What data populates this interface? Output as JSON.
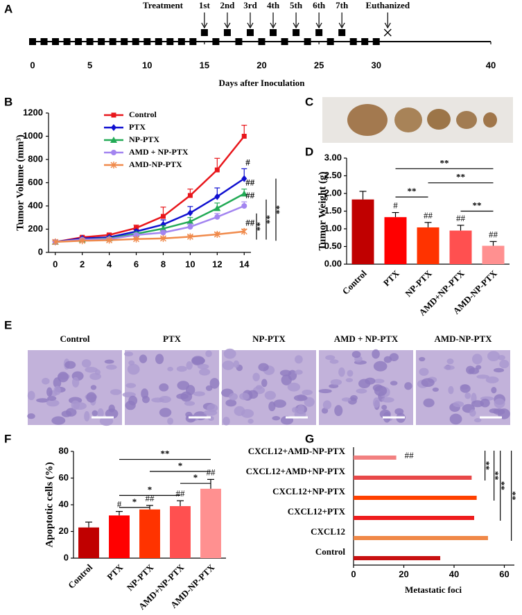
{
  "chart_data": [
    {
      "type": "timeline",
      "panel": "A",
      "title": "Treatment",
      "xlabel": "Days after Inoculation",
      "xlim": [
        0,
        40
      ],
      "xticks": [
        0,
        5,
        10,
        15,
        20,
        25,
        30,
        40
      ],
      "days": [
        0,
        1,
        2,
        3,
        4,
        5,
        6,
        7,
        8,
        9,
        10,
        11,
        12,
        13,
        14,
        15,
        16,
        17,
        18,
        19,
        20,
        21,
        22,
        23,
        24,
        25,
        26,
        27,
        28,
        29,
        30
      ],
      "doses": {
        "labels": [
          "1st",
          "2nd",
          "3rd",
          "4th",
          "5th",
          "6th",
          "7th"
        ],
        "days": [
          15,
          17,
          19,
          21,
          23,
          25,
          27
        ]
      },
      "endpoint": {
        "label": "Euthanized",
        "day": 31
      }
    },
    {
      "type": "line",
      "panel": "B",
      "ylabel": "Tumor Volume (mm³)",
      "legend": "upper left",
      "x": [
        0,
        2,
        4,
        6,
        8,
        10,
        12,
        14
      ],
      "xlim": [
        -0.5,
        14.5
      ],
      "xticks": [
        0,
        2,
        4,
        6,
        8,
        10,
        12,
        14
      ],
      "ylim": [
        0,
        1200
      ],
      "yticks": [
        0,
        200,
        400,
        600,
        800,
        1000,
        1200
      ],
      "series": [
        {
          "name": "Control",
          "color": "#e8161b",
          "marker": "square",
          "values": [
            90,
            130,
            150,
            210,
            310,
            490,
            710,
            1000
          ],
          "errors": [
            10,
            10,
            12,
            25,
            80,
            55,
            100,
            95
          ]
        },
        {
          "name": "PTX",
          "color": "#1010d0",
          "marker": "diamond",
          "values": [
            90,
            120,
            130,
            180,
            240,
            340,
            480,
            635
          ],
          "errors": [
            10,
            8,
            10,
            15,
            40,
            55,
            75,
            85
          ],
          "end_label": "#"
        },
        {
          "name": "NP-PTX",
          "color": "#22aa55",
          "marker": "triangle",
          "values": [
            90,
            110,
            120,
            160,
            205,
            265,
            380,
            505
          ],
          "errors": [
            8,
            8,
            10,
            15,
            25,
            35,
            45,
            40
          ],
          "end_label": "##"
        },
        {
          "name": "AMD + NP-PTX",
          "color": "#a385f0",
          "marker": "circle",
          "values": [
            90,
            110,
            115,
            150,
            170,
            220,
            305,
            400
          ],
          "errors": [
            8,
            8,
            8,
            12,
            20,
            25,
            30,
            35
          ],
          "end_label": "##"
        },
        {
          "name": "AMD-NP-PTX",
          "color": "#f08a4b",
          "marker": "asterisk",
          "values": [
            90,
            100,
            105,
            115,
            120,
            135,
            155,
            180
          ],
          "errors": [
            8,
            5,
            6,
            8,
            10,
            12,
            15,
            20
          ],
          "end_label": "##"
        }
      ],
      "brackets": [
        {
          "label": "**",
          "span": [
            110,
            335
          ]
        },
        {
          "label": "**",
          "span": [
            110,
            455
          ]
        },
        {
          "label": "**",
          "span": [
            100,
            635
          ]
        }
      ]
    },
    {
      "type": "bar",
      "panel": "D",
      "ylabel": "Tumor Weight (g)",
      "categories": [
        "Control",
        "PTX",
        "NP-PTX",
        "AMD+NP-PTX",
        "AMD-NP-PTX"
      ],
      "values": [
        1.83,
        1.33,
        1.04,
        0.95,
        0.52
      ],
      "errors": [
        0.23,
        0.13,
        0.14,
        0.15,
        0.12
      ],
      "colors": [
        "#c00000",
        "#ff0000",
        "#ff3300",
        "#ff5050",
        "#ff9090"
      ],
      "markers": [
        null,
        "#",
        "##",
        "##",
        "##"
      ],
      "ylim": [
        0,
        3
      ],
      "yticks": [
        {
          "value": 0,
          "label": "0.00"
        },
        {
          "value": 0.5,
          "label": "0.50"
        },
        {
          "value": 1,
          "label": "1.00"
        },
        {
          "value": 1.5,
          "label": "1.50"
        },
        {
          "value": 2,
          "label": "2.00"
        },
        {
          "value": 2.5,
          "label": "2.50"
        },
        {
          "value": 3,
          "label": "3.00"
        }
      ],
      "brackets": [
        {
          "label": "**",
          "from": "PTX",
          "to": "AMD-NP-PTX",
          "y": 2.7
        },
        {
          "label": "**",
          "from": "NP-PTX",
          "to": "AMD-NP-PTX",
          "y": 2.3
        },
        {
          "label": "**",
          "from": "PTX",
          "to": "NP-PTX",
          "y": 1.9
        },
        {
          "label": "**",
          "from": "AMD+NP-PTX",
          "to": "AMD-NP-PTX",
          "y": 1.5
        }
      ]
    },
    {
      "type": "bar",
      "panel": "F",
      "ylabel": "Apoptotic cells (%)",
      "categories": [
        "Control",
        "PTX",
        "NP-PTX",
        "AMD+NP-PTX",
        "AMD-NP-PTX"
      ],
      "values": [
        23,
        32,
        36.5,
        39,
        52
      ],
      "errors": [
        4,
        3,
        3,
        4,
        7
      ],
      "colors": [
        "#c00000",
        "#ff0000",
        "#ff3300",
        "#ff5050",
        "#ff9090"
      ],
      "markers": [
        null,
        "#",
        "##",
        "##",
        "##"
      ],
      "ylim": [
        0,
        80
      ],
      "yticks": [
        0,
        20,
        40,
        60,
        80
      ],
      "brackets": [
        {
          "label": "**",
          "from": "PTX",
          "to": "AMD-NP-PTX",
          "y": 74
        },
        {
          "label": "*",
          "from": "NP-PTX",
          "to": "AMD-NP-PTX",
          "y": 65
        },
        {
          "label": "*",
          "from": "AMD+NP-PTX",
          "to": "AMD-NP-PTX",
          "y": 56
        },
        {
          "label": "*",
          "from": "PTX",
          "to": "AMD+NP-PTX",
          "y": 47
        },
        {
          "label": "*",
          "from": "PTX",
          "to": "NP-PTX",
          "y": 38
        }
      ]
    },
    {
      "type": "hbar",
      "panel": "G",
      "xlabel": "Metastatic foci",
      "categories": [
        "CXCL12+AMD-NP-PTX",
        "CXCL12+AMD+NP-PTX",
        "CXCL12+NP-PTX",
        "CXCL12+PTX",
        "CXCL12",
        "Control"
      ],
      "values": [
        17,
        47,
        49,
        48,
        53.5,
        34.5
      ],
      "colors": [
        "#f28080",
        "#e84848",
        "#ff4000",
        "#ee1c1c",
        "#f08848",
        "#c81010"
      ],
      "markers": [
        "##",
        null,
        null,
        null,
        null,
        null
      ],
      "xlim": [
        0,
        64
      ],
      "xticks": [
        0,
        20,
        40,
        60
      ],
      "brackets": [
        {
          "label": "**",
          "from": "CXCL12+AMD-NP-PTX",
          "to": "CXCL12+AMD+NP-PTX",
          "x": 52.3
        },
        {
          "label": "**",
          "from": "CXCL12+AMD-NP-PTX",
          "to": "CXCL12+NP-PTX",
          "x": 55.9
        },
        {
          "label": "**",
          "from": "CXCL12+AMD-NP-PTX",
          "to": "CXCL12+PTX",
          "x": 58.4
        },
        {
          "label": "**",
          "from": "CXCL12+AMD-NP-PTX",
          "to": "CXCL12",
          "x": 62.8
        }
      ]
    }
  ],
  "photo": {
    "panel": "C"
  },
  "histology": {
    "panel": "E",
    "labels": [
      "Control",
      "PTX",
      "NP-PTX",
      "AMD + NP-PTX",
      "AMD-NP-PTX"
    ]
  }
}
